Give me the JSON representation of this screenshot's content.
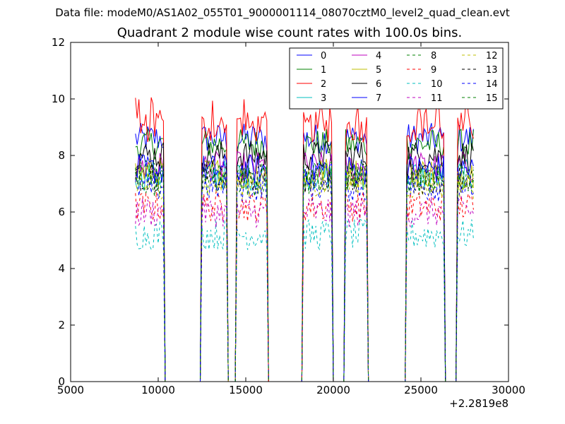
{
  "subtitle": "Data file: modeM0/AS1A02_055T01_9000001114_08070cztM0_level2_quad_clean.evt",
  "chart_data": {
    "type": "line",
    "title": "Quadrant 2 module wise count rates with 100.0s bins.",
    "xlabel": "",
    "ylabel": "",
    "x_offset_label": "+2.2819e8",
    "xlim": [
      5000,
      30000
    ],
    "ylim": [
      0,
      12
    ],
    "x_ticks": [
      5000,
      10000,
      15000,
      20000,
      25000,
      30000
    ],
    "y_ticks": [
      0,
      2,
      4,
      6,
      8,
      10,
      12
    ],
    "grid": false,
    "legend_position": "top-right",
    "legend_columns": 4,
    "segments": [
      {
        "start": 8700,
        "end": 10300
      },
      {
        "start": 12500,
        "end": 13900
      },
      {
        "start": 14500,
        "end": 16200
      },
      {
        "start": 18300,
        "end": 19900
      },
      {
        "start": 20700,
        "end": 21900
      },
      {
        "start": 24200,
        "end": 26300
      },
      {
        "start": 27100,
        "end": 28000
      }
    ],
    "series": [
      {
        "name": "0",
        "color": "#0000ff",
        "dash": "solid",
        "level": 8.6
      },
      {
        "name": "1",
        "color": "#008000",
        "dash": "solid",
        "level": 8.4
      },
      {
        "name": "2",
        "color": "#ff0000",
        "dash": "solid",
        "level": 9.0
      },
      {
        "name": "3",
        "color": "#00bfbf",
        "dash": "solid",
        "level": 7.3
      },
      {
        "name": "4",
        "color": "#bf00bf",
        "dash": "solid",
        "level": 7.6
      },
      {
        "name": "5",
        "color": "#bfbf00",
        "dash": "solid",
        "level": 7.4
      },
      {
        "name": "6",
        "color": "#000000",
        "dash": "solid",
        "level": 8.0
      },
      {
        "name": "7",
        "color": "#0000ff",
        "dash": "solid",
        "level": 7.5
      },
      {
        "name": "8",
        "color": "#008000",
        "dash": "dashed",
        "level": 7.1
      },
      {
        "name": "9",
        "color": "#ff0000",
        "dash": "dashed",
        "level": 6.2
      },
      {
        "name": "10",
        "color": "#00bfbf",
        "dash": "dashed",
        "level": 5.2
      },
      {
        "name": "11",
        "color": "#bf00bf",
        "dash": "dashed",
        "level": 6.0
      },
      {
        "name": "12",
        "color": "#bfbf00",
        "dash": "dashed",
        "level": 7.0
      },
      {
        "name": "13",
        "color": "#000000",
        "dash": "dashed",
        "level": 7.2
      },
      {
        "name": "14",
        "color": "#0000ff",
        "dash": "dashed",
        "level": 6.9
      },
      {
        "name": "15",
        "color": "#008000",
        "dash": "dashed",
        "level": 7.3
      }
    ]
  }
}
